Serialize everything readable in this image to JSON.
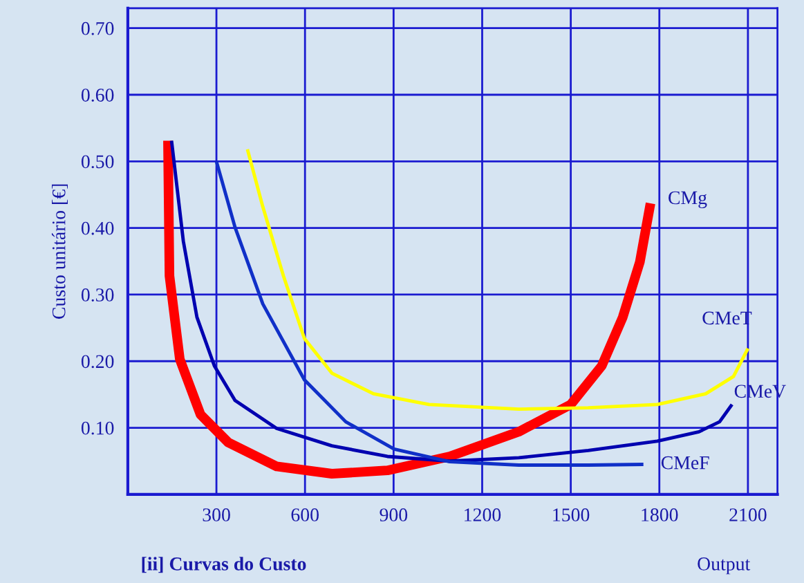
{
  "chart_data": {
    "type": "line",
    "xlabel": "Output",
    "ylabel": "Custo unitário [€]",
    "annotations": [
      "[ii] Curvas do Custo"
    ],
    "xlim": [
      0,
      2200
    ],
    "ylim": [
      0,
      0.73
    ],
    "xticks": [
      300,
      600,
      900,
      1200,
      1500,
      1800,
      2100
    ],
    "yticks": [
      {
        "value": 0.1,
        "label": "0.10"
      },
      {
        "value": 0.2,
        "label": "0.20"
      },
      {
        "value": 0.3,
        "label": "0.30"
      },
      {
        "value": 0.4,
        "label": "0.40"
      },
      {
        "value": 0.5,
        "label": "0.50"
      },
      {
        "value": 0.6,
        "label": "0.60"
      },
      {
        "value": 0.7,
        "label": "0.70"
      }
    ],
    "grid": true,
    "legend": false,
    "marker": "none",
    "line_style": "solid",
    "series": [
      {
        "name": "CMg",
        "color": "#ff0000",
        "x": [
          136,
          141,
          176,
          246,
          340,
          504,
          691,
          879,
          1090,
          1324,
          1500,
          1605,
          1676,
          1734,
          1770
        ],
        "values": [
          0.531,
          0.328,
          0.203,
          0.12,
          0.078,
          0.042,
          0.031,
          0.036,
          0.057,
          0.094,
          0.135,
          0.193,
          0.266,
          0.349,
          0.437
        ]
      },
      {
        "name": "CMeT",
        "color": "#ffff00",
        "x": [
          405,
          457,
          527,
          598,
          691,
          832,
          1020,
          1324,
          1559,
          1793,
          1957,
          2051,
          2100
        ],
        "values": [
          0.518,
          0.432,
          0.328,
          0.234,
          0.182,
          0.151,
          0.135,
          0.128,
          0.13,
          0.135,
          0.151,
          0.177,
          0.219
        ]
      },
      {
        "name": "CMeV",
        "color": "#0000b0",
        "x": [
          148,
          188,
          234,
          293,
          363,
          504,
          691,
          879,
          1090,
          1324,
          1559,
          1793,
          1934,
          2004,
          2046
        ],
        "values": [
          0.531,
          0.38,
          0.266,
          0.193,
          0.141,
          0.099,
          0.073,
          0.057,
          0.05,
          0.055,
          0.066,
          0.08,
          0.094,
          0.109,
          0.135
        ]
      },
      {
        "name": "CMeF",
        "color": "#1030c8",
        "x": [
          300,
          363,
          457,
          598,
          738,
          902,
          1090,
          1324,
          1559,
          1746
        ],
        "values": [
          0.5,
          0.401,
          0.286,
          0.172,
          0.109,
          0.068,
          0.049,
          0.044,
          0.044,
          0.045
        ]
      }
    ]
  }
}
